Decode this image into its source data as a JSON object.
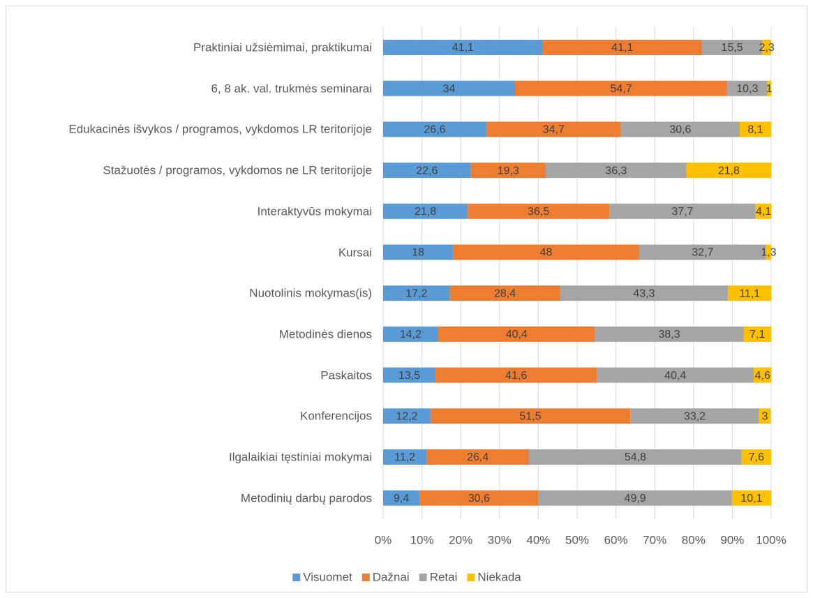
{
  "chart_data": {
    "type": "stacked-bar-horizontal",
    "categories": [
      "Praktiniai užsiėmimai, praktikumai",
      "6, 8 ak. val. trukmės seminarai",
      "Edukacinės išvykos / programos, vykdomos LR teritorijoje",
      "Stažuotės / programos, vykdomos ne LR teritorijoje",
      "Interaktyvūs mokymai",
      "Kursai",
      "Nuotolinis mokymas(is)",
      "Metodinės dienos",
      "Paskaitos",
      "Konferencijos",
      "Ilgalaikiai tęstiniai mokymai",
      "Metodinių darbų parodos"
    ],
    "series": [
      {
        "name": "Visuomet",
        "color": "#5b9bd5",
        "values": [
          41.1,
          34,
          26.6,
          22.6,
          21.8,
          18,
          17.2,
          14.2,
          13.5,
          12.2,
          11.2,
          9.4
        ],
        "value_labels": [
          "41,1",
          "34",
          "26,6",
          "22,6",
          "21,8",
          "18",
          "17,2",
          "14,2",
          "13,5",
          "12,2",
          "11,2",
          "9,4"
        ]
      },
      {
        "name": "Dažnai",
        "color": "#ed7d31",
        "values": [
          41.1,
          54.7,
          34.7,
          19.3,
          36.5,
          48,
          28.4,
          40.4,
          41.6,
          51.5,
          26.4,
          30.6
        ],
        "value_labels": [
          "41,1",
          "54,7",
          "34,7",
          "19,3",
          "36,5",
          "48",
          "28,4",
          "40,4",
          "41,6",
          "51,5",
          "26,4",
          "30,6"
        ]
      },
      {
        "name": "Retai",
        "color": "#a5a5a5",
        "values": [
          15.5,
          10.3,
          30.6,
          36.3,
          37.7,
          32.7,
          43.3,
          38.3,
          40.4,
          33.2,
          54.8,
          49.9
        ],
        "value_labels": [
          "15,5",
          "10,3",
          "30,6",
          "36,3",
          "37,7",
          "32,7",
          "43,3",
          "38,3",
          "40,4",
          "33,2",
          "54,8",
          "49,9"
        ]
      },
      {
        "name": "Niekada",
        "color": "#ffc000",
        "values": [
          2.3,
          1,
          8.1,
          21.8,
          4.1,
          1.3,
          11.1,
          7.1,
          4.6,
          3,
          7.6,
          10.1
        ],
        "value_labels": [
          "2,3",
          "1",
          "8,1",
          "21,8",
          "4,1",
          "1,3",
          "11,1",
          "7,1",
          "4,6",
          "3",
          "7,6",
          "10,1"
        ]
      }
    ],
    "xlim": [
      0,
      100
    ],
    "xticks": [
      {
        "value": 0,
        "label": "0%"
      },
      {
        "value": 10,
        "label": "10%"
      },
      {
        "value": 20,
        "label": "20%"
      },
      {
        "value": 30,
        "label": "30%"
      },
      {
        "value": 40,
        "label": "40%"
      },
      {
        "value": 50,
        "label": "50%"
      },
      {
        "value": 60,
        "label": "60%"
      },
      {
        "value": 70,
        "label": "70%"
      },
      {
        "value": 80,
        "label": "80%"
      },
      {
        "value": 90,
        "label": "90%"
      },
      {
        "value": 100,
        "label": "100%"
      }
    ],
    "grid": true,
    "legend": "bottom"
  }
}
